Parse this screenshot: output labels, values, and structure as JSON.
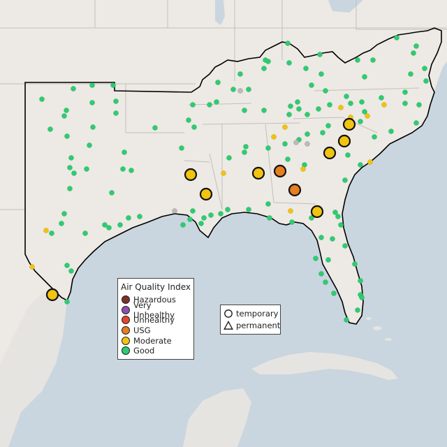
{
  "map": {
    "colors": {
      "water": "#c9d6df",
      "land": "#ede9e4",
      "land_outside": "#e6e4e1",
      "state_line": "#c2bfbb",
      "region_outline": "#000000"
    },
    "sites": [
      {
        "lon": -98.5,
        "lat": 29.4,
        "aqi": "Good"
      },
      {
        "lon": -97.6,
        "lat": 26.2,
        "aqi": "Moderate",
        "monitor": "temporary",
        "size": "large"
      },
      {
        "lon": -96.8,
        "lat": 32.9,
        "aqi": "Good"
      },
      {
        "lon": -90.2,
        "lat": 32.3,
        "aqi": "Moderate",
        "monitor": "temporary",
        "size": "large"
      },
      {
        "lon": -84.4,
        "lat": 33.8,
        "aqi": "USG",
        "monitor": "temporary",
        "size": "large"
      },
      {
        "lon": -80.9,
        "lat": 35.2,
        "aqi": "Moderate",
        "monitor": "temporary",
        "size": "large"
      },
      {
        "lon": -83.5,
        "lat": 32.1,
        "aqi": "USG",
        "monitor": "temporary",
        "size": "large"
      }
    ]
  },
  "legend": {
    "title": "Air Quality Index",
    "items": [
      {
        "label": "Hazardous",
        "color": "#7e2f26"
      },
      {
        "label": "Very Unhealthy",
        "color": "#8e4fb0"
      },
      {
        "label": "Unhealthy",
        "color": "#e5452e"
      },
      {
        "label": "USG",
        "color": "#e67e22"
      },
      {
        "label": "Moderate",
        "color": "#f1c40f"
      },
      {
        "label": "Good",
        "color": "#2ecc71"
      }
    ]
  },
  "monitor_legend": {
    "items": [
      {
        "label": "temporary",
        "symbol": "circle-icon"
      },
      {
        "label": "permanent",
        "symbol": "triangle-icon"
      }
    ]
  }
}
